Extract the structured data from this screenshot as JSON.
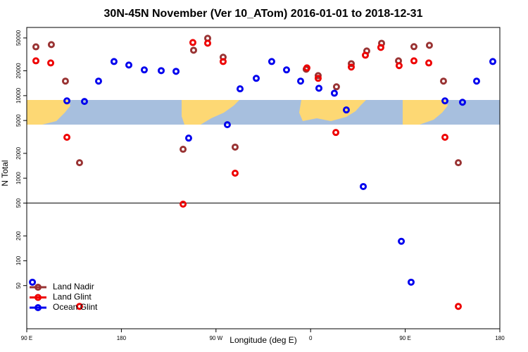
{
  "chart_data": {
    "type": "scatter",
    "title": "30N-45N November (Ver 10_ATom)   2016-01-01 to 2018-12-31",
    "x_label": "Longitude (deg E)",
    "y_label": "N Total",
    "log_y": true,
    "xlim": [
      90,
      540
    ],
    "ylim": [
      15,
      67000
    ],
    "xticks": [
      {
        "value": 90,
        "label": "90 E"
      },
      {
        "value": 180,
        "label": "180"
      },
      {
        "value": 270,
        "label": "90 W"
      },
      {
        "value": 360,
        "label": "0"
      },
      {
        "value": 450,
        "label": "90 E"
      },
      {
        "value": 540,
        "label": "180"
      }
    ],
    "yticks": [
      50,
      100,
      200,
      500,
      1000,
      2000,
      5000,
      10000,
      20000,
      50000
    ],
    "hline": 500,
    "legend": "bottom-left",
    "series": [
      {
        "name": "Land Nadir",
        "color": "#993333",
        "x": [
          98.7,
          113.4,
          126.8,
          140.2,
          238.7,
          248.7,
          262.1,
          276.8,
          288.2,
          355.8,
          367.2,
          384.6,
          398.7,
          413.4,
          427.5,
          443.6,
          458.3,
          473.0,
          486.4,
          500.5
        ],
        "values": [
          39000,
          41500,
          15000,
          1540,
          2240,
          35500,
          49500,
          29200,
          2380,
          20900,
          17500,
          12800,
          24400,
          34800,
          43100,
          26400,
          39200,
          40700,
          15000,
          1540
        ]
      },
      {
        "name": "Land Glint",
        "color": "#ee0000",
        "x": [
          98.7,
          112.8,
          128.2,
          140.2,
          238.7,
          248.0,
          262.1,
          276.8,
          288.2,
          356.5,
          367.2,
          384.0,
          398.7,
          412.1,
          426.8,
          444.2,
          458.3,
          472.4,
          487.8,
          500.5
        ],
        "values": [
          26400,
          24900,
          3130,
          28,
          485,
          44000,
          43200,
          25900,
          1150,
          21700,
          16200,
          3580,
          22200,
          30900,
          38400,
          23100,
          26400,
          24900,
          3130,
          28
        ]
      },
      {
        "name": "Ocean Glint",
        "color": "#0000ee",
        "x": [
          95.4,
          128.2,
          144.9,
          158.3,
          173.0,
          187.1,
          201.8,
          217.9,
          232.0,
          244.0,
          280.8,
          292.9,
          308.3,
          323.0,
          337.1,
          350.5,
          367.9,
          382.6,
          394.0,
          410.1,
          446.3,
          455.6,
          487.8,
          504.5,
          517.9,
          533.3
        ],
        "values": [
          55,
          8650,
          8500,
          15000,
          25900,
          23500,
          20500,
          20100,
          19700,
          3060,
          4450,
          12100,
          16200,
          25900,
          20500,
          15000,
          12300,
          10700,
          6710,
          793,
          172,
          55,
          8650,
          8320,
          15000,
          25900
        ]
      }
    ]
  }
}
